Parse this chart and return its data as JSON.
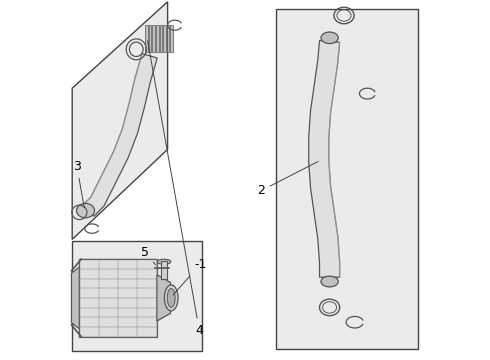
{
  "bg_color": "#ffffff",
  "line_color": "#555555",
  "fill_light": "#e8e8e8",
  "fill_mid": "#d0d0d0",
  "fill_dark": "#a0a0a0",
  "box_bg": "#ebebeb",
  "label_fontsize": 9,
  "figsize": [
    4.9,
    3.6
  ],
  "dpi": 100
}
